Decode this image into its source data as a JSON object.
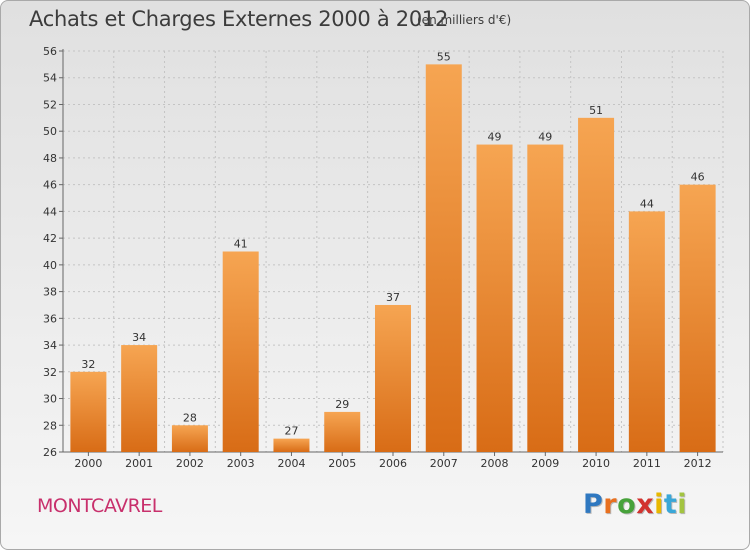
{
  "header": {
    "title": "Achats et Charges Externes 2000 à 2012",
    "subtitle": "(en milliers d'€)"
  },
  "footer": {
    "location": "MONTCAVREL",
    "logo": {
      "text": "Proxiti",
      "colors": [
        "#2f78c0",
        "#e8701f",
        "#47a23b",
        "#d2332f",
        "#e8b800",
        "#3aa7d8",
        "#a3c440"
      ]
    }
  },
  "colors": {
    "bar_top": "#f6a552",
    "bar_bottom": "#d86c16",
    "location_text": "#c8306c"
  },
  "chart_data": {
    "type": "bar",
    "categories": [
      "2000",
      "2001",
      "2002",
      "2003",
      "2004",
      "2005",
      "2006",
      "2007",
      "2008",
      "2009",
      "2010",
      "2011",
      "2012"
    ],
    "values": [
      32,
      34,
      28,
      41,
      27,
      29,
      37,
      55,
      49,
      49,
      51,
      44,
      46
    ],
    "data_labels": [
      "32",
      "34",
      "28",
      "41",
      "27",
      "29",
      "37",
      "55",
      "49",
      "49",
      "51",
      "44",
      "46"
    ],
    "ylim": [
      26,
      56
    ],
    "yticks": [
      "26",
      "28",
      "30",
      "32",
      "34",
      "36",
      "38",
      "40",
      "42",
      "44",
      "46",
      "48",
      "50",
      "52",
      "54",
      "56"
    ],
    "grid": true,
    "xlabel": "",
    "ylabel": ""
  }
}
